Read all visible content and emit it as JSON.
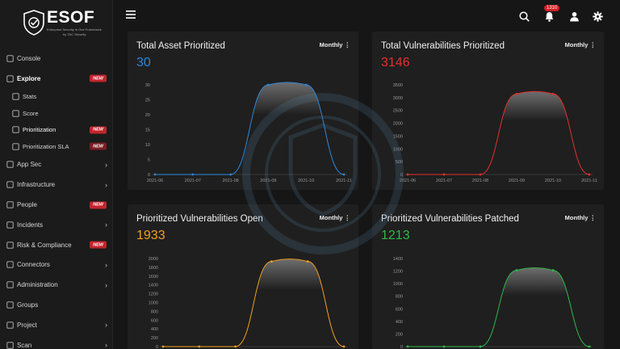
{
  "brand": {
    "name": "ESOF",
    "tagline": "Enterprise Security in One Framework",
    "byline": "by TAC Security"
  },
  "sidebar": {
    "items": [
      {
        "label": "Console",
        "icon": "console-icon",
        "chevron": false,
        "badge": ""
      },
      {
        "label": "Explore",
        "icon": "explore-icon",
        "chevron": false,
        "badge": "NEW",
        "active": true
      },
      {
        "label": "Stats",
        "icon": "stats-icon",
        "sub": true,
        "chevron": false,
        "badge": ""
      },
      {
        "label": "Score",
        "icon": "score-icon",
        "sub": true,
        "chevron": false,
        "badge": ""
      },
      {
        "label": "Prioritization",
        "icon": "prioritization-icon",
        "sub": true,
        "current": true,
        "chevron": false,
        "badge": "NEW"
      },
      {
        "label": "Prioritization SLA",
        "icon": "sla-icon",
        "sub": true,
        "chevron": false,
        "badge": "NEW"
      },
      {
        "label": "App Sec",
        "icon": "appsec-icon",
        "chevron": true,
        "badge": ""
      },
      {
        "label": "Infrastructure",
        "icon": "infrastructure-icon",
        "chevron": true,
        "badge": ""
      },
      {
        "label": "People",
        "icon": "people-icon",
        "chevron": false,
        "badge": "NEW"
      },
      {
        "label": "Incidents",
        "icon": "incidents-icon",
        "chevron": true,
        "badge": ""
      },
      {
        "label": "Risk & Compliance",
        "icon": "risk-icon",
        "chevron": false,
        "badge": "NEW"
      },
      {
        "label": "Connectors",
        "icon": "connectors-icon",
        "chevron": true,
        "badge": ""
      },
      {
        "label": "Administration",
        "icon": "administration-icon",
        "chevron": true,
        "badge": ""
      },
      {
        "label": "Groups",
        "icon": "groups-icon",
        "chevron": false,
        "badge": ""
      },
      {
        "label": "Project",
        "icon": "project-icon",
        "chevron": true,
        "badge": ""
      },
      {
        "label": "Scan",
        "icon": "scan-icon",
        "chevron": true,
        "badge": ""
      }
    ]
  },
  "header": {
    "notification_count": "1310",
    "icons": [
      "menu-icon",
      "search-icon",
      "bell-icon",
      "user-icon",
      "gear-icon"
    ]
  },
  "cards": [
    {
      "title": "Total Asset Prioritized",
      "value": "30",
      "period": "Monthly",
      "color": "#2f87d8"
    },
    {
      "title": "Total Vulnerabilities Prioritized",
      "value": "3146",
      "period": "Monthly",
      "color": "#e5302b"
    },
    {
      "title": "Prioritized Vulnerabilities Open",
      "value": "1933",
      "period": "Monthly",
      "color": "#f0a020"
    },
    {
      "title": "Prioritized Vulnerabilities Patched",
      "value": "1213",
      "period": "Monthly",
      "color": "#2fb84a"
    }
  ],
  "chart_data": [
    {
      "type": "area",
      "x": [
        "2021-06",
        "2021-07",
        "2021-08",
        "2021-09",
        "2021-10",
        "2021-11"
      ],
      "series": [
        {
          "values": [
            0,
            0,
            0,
            30,
            30,
            0
          ]
        }
      ],
      "yticks": [
        0,
        5,
        10,
        15,
        20,
        25,
        30
      ],
      "ylim": [
        0,
        30
      ],
      "color": "#2f87d8",
      "grid": false
    },
    {
      "type": "area",
      "x": [
        "2021-06",
        "2021-07",
        "2021-08",
        "2021-09",
        "2021-10",
        "2021-11"
      ],
      "series": [
        {
          "values": [
            0,
            0,
            0,
            3146,
            3146,
            0
          ]
        }
      ],
      "yticks": [
        0,
        500,
        1000,
        1500,
        2000,
        2500,
        3000,
        3500
      ],
      "ylim": [
        0,
        3500
      ],
      "color": "#e5302b",
      "grid": false
    },
    {
      "type": "area",
      "x": [
        "2021-06",
        "2021-07",
        "2021-08",
        "2021-09",
        "2021-10",
        "2021-11"
      ],
      "series": [
        {
          "values": [
            0,
            0,
            0,
            1933,
            1933,
            0
          ]
        }
      ],
      "yticks": [
        0,
        200,
        400,
        600,
        800,
        1000,
        1200,
        1400,
        1600,
        1800,
        2000
      ],
      "ylim": [
        0,
        2000
      ],
      "color": "#f0a020",
      "grid": false
    },
    {
      "type": "area",
      "x": [
        "2021-06",
        "2021-07",
        "2021-08",
        "2021-09",
        "2021-10",
        "2021-11"
      ],
      "series": [
        {
          "values": [
            0,
            0,
            0,
            1213,
            1213,
            0
          ]
        }
      ],
      "yticks": [
        0,
        200,
        400,
        600,
        800,
        1000,
        1200,
        1400
      ],
      "ylim": [
        0,
        1400
      ],
      "color": "#2fb84a",
      "grid": false
    }
  ]
}
